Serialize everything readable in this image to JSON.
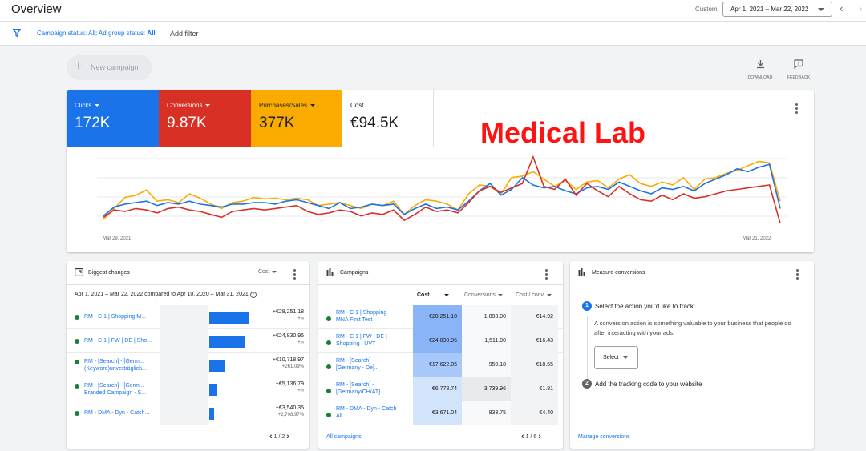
{
  "header": {
    "title": "Overview",
    "custom_label": "Custom",
    "date_range": "Apr 1, 2021 – Mar 22, 2022",
    "prev_icon": "chevron-left-icon",
    "next_icon": "chevron-right-icon"
  },
  "filter_bar": {
    "status_prefix": "Campaign status: All; Ad group status: ",
    "status_bold": "All",
    "add_filter": "Add filter"
  },
  "toolbar": {
    "new_campaign": "New campaign",
    "download": "DOWNLOAD",
    "feedback": "FEEDBACK"
  },
  "metrics": [
    {
      "label": "Clicks",
      "value": "172K",
      "color": "#1a73e8",
      "dropdown": true
    },
    {
      "label": "Conversions",
      "value": "9.87K",
      "color": "#d93025",
      "dropdown": true
    },
    {
      "label": "Purchases/Sales",
      "value": "377K",
      "color": "#f9ab00",
      "dropdown": true
    },
    {
      "label": "Cost",
      "value": "€94.5K",
      "color": "#ffffff",
      "dropdown": false
    }
  ],
  "overlay_text": "Medical Lab",
  "chart_data": {
    "type": "line",
    "x_start_label": "Mar 29, 2021",
    "x_end_label": "Mar 21, 2022",
    "grid": true,
    "series": [
      {
        "color": "#f9ab00",
        "values": [
          15,
          30,
          45,
          48,
          55,
          40,
          42,
          38,
          50,
          44,
          36,
          30,
          38,
          40,
          45,
          43,
          44,
          42,
          44,
          42,
          34,
          36,
          38,
          34,
          30,
          36,
          34,
          40,
          22,
          34,
          42,
          40,
          36,
          28,
          50,
          62,
          60,
          50,
          72,
          74,
          80,
          70,
          60,
          68,
          56,
          66,
          68,
          58,
          70,
          76,
          64,
          60,
          66,
          62,
          72,
          56,
          70,
          72,
          78,
          82,
          88,
          94,
          92,
          40
        ]
      },
      {
        "color": "#1a73e8",
        "values": [
          20,
          32,
          36,
          38,
          40,
          34,
          38,
          36,
          40,
          36,
          34,
          32,
          36,
          36,
          38,
          38,
          36,
          40,
          42,
          38,
          34,
          30,
          38,
          30,
          32,
          36,
          34,
          36,
          22,
          30,
          36,
          30,
          32,
          28,
          40,
          54,
          64,
          48,
          56,
          72,
          62,
          58,
          60,
          54,
          50,
          58,
          60,
          56,
          66,
          60,
          54,
          50,
          58,
          56,
          60,
          54,
          64,
          70,
          76,
          84,
          80,
          86,
          90,
          30
        ]
      },
      {
        "color": "#d93025",
        "values": [
          18,
          28,
          26,
          30,
          28,
          24,
          30,
          32,
          28,
          26,
          22,
          18,
          26,
          28,
          30,
          28,
          30,
          32,
          34,
          26,
          22,
          24,
          28,
          26,
          20,
          24,
          22,
          28,
          14,
          22,
          32,
          26,
          28,
          24,
          38,
          54,
          60,
          52,
          58,
          64,
          100,
          60,
          56,
          70,
          48,
          64,
          54,
          46,
          60,
          50,
          42,
          40,
          48,
          42,
          50,
          44,
          46,
          50,
          54,
          56,
          58,
          60,
          62,
          10
        ]
      }
    ]
  },
  "biggest_changes": {
    "title": "Biggest changes",
    "sort_label": "Cost",
    "comparison": "Apr 1, 2021 – Mar 22, 2022 compared to Apr 10, 2020 – Mar 31, 2021",
    "help_icon": "help-icon",
    "rows": [
      {
        "name": [
          "RM - C 1 | Shopping M..."
        ],
        "status": "enabled",
        "change": 28251.18,
        "value": "+€28,251.18",
        "sub": "+∞"
      },
      {
        "name": [
          "RM - C 1 | FW | DE | Sho..."
        ],
        "status": "enabled",
        "change": 24830.96,
        "value": "+€24,830.96",
        "sub": "+∞"
      },
      {
        "name": [
          "RM - [Search] - [Germ...",
          "(Keyword)unverträglich..."
        ],
        "status": "enabled",
        "change": 10718.97,
        "value": "+€10,718.97",
        "sub": "+261.09%"
      },
      {
        "name": [
          "RM - [Search] - [Germ...",
          "Branded Campaign - S..."
        ],
        "status": "enabled",
        "change": 5136.79,
        "value": "+€5,136.79",
        "sub": "+∞"
      },
      {
        "name": [
          "RM - DMA - Dyn - Catch..."
        ],
        "status": "enabled",
        "change": 3540.35,
        "value": "+€3,540.35",
        "sub": "+2,708.97%"
      }
    ],
    "pager": "1 / 2"
  },
  "campaigns": {
    "title": "Campaigns",
    "columns": [
      "Cost",
      "Conversions",
      "Cost / conv."
    ],
    "rows": [
      {
        "name": [
          "RM - C 1 | Shopping",
          "MNA First Test"
        ],
        "cost": "€28,251.18",
        "conversions": "1,893.00",
        "cost_conv": "€14.92"
      },
      {
        "name": [
          "RM - C 1 | FW | DE |",
          "Shopping | UVT"
        ],
        "cost": "€24,830.96",
        "conversions": "1,511.00",
        "cost_conv": "€16.43"
      },
      {
        "name": [
          "RM - [Search] -",
          "[Germany - De]..."
        ],
        "cost": "€17,622.05",
        "conversions": "950.18",
        "cost_conv": "€18.55"
      },
      {
        "name": [
          "RM - [Search] -",
          "[Germany/CH/AT]..."
        ],
        "cost": "€6,778.74",
        "conversions": "3,739.96",
        "cost_conv": "€1.81"
      },
      {
        "name": [
          "RM - DMA - Dyn - Catch",
          "All"
        ],
        "cost": "€3,671.04",
        "conversions": "833.75",
        "cost_conv": "€4.40"
      }
    ],
    "all_link": "All campaigns",
    "pager": "1 / 6"
  },
  "measure": {
    "title": "Measure conversions",
    "step1_num": "1",
    "step1_title": "Select the action you'd like to track",
    "step1_desc": "A conversion action is something valuable to your business that people do after interacting with your ads.",
    "select_label": "Select",
    "step2_num": "2",
    "step2_title": "Add the tracking code to your website",
    "manage_link": "Manage conversions"
  }
}
